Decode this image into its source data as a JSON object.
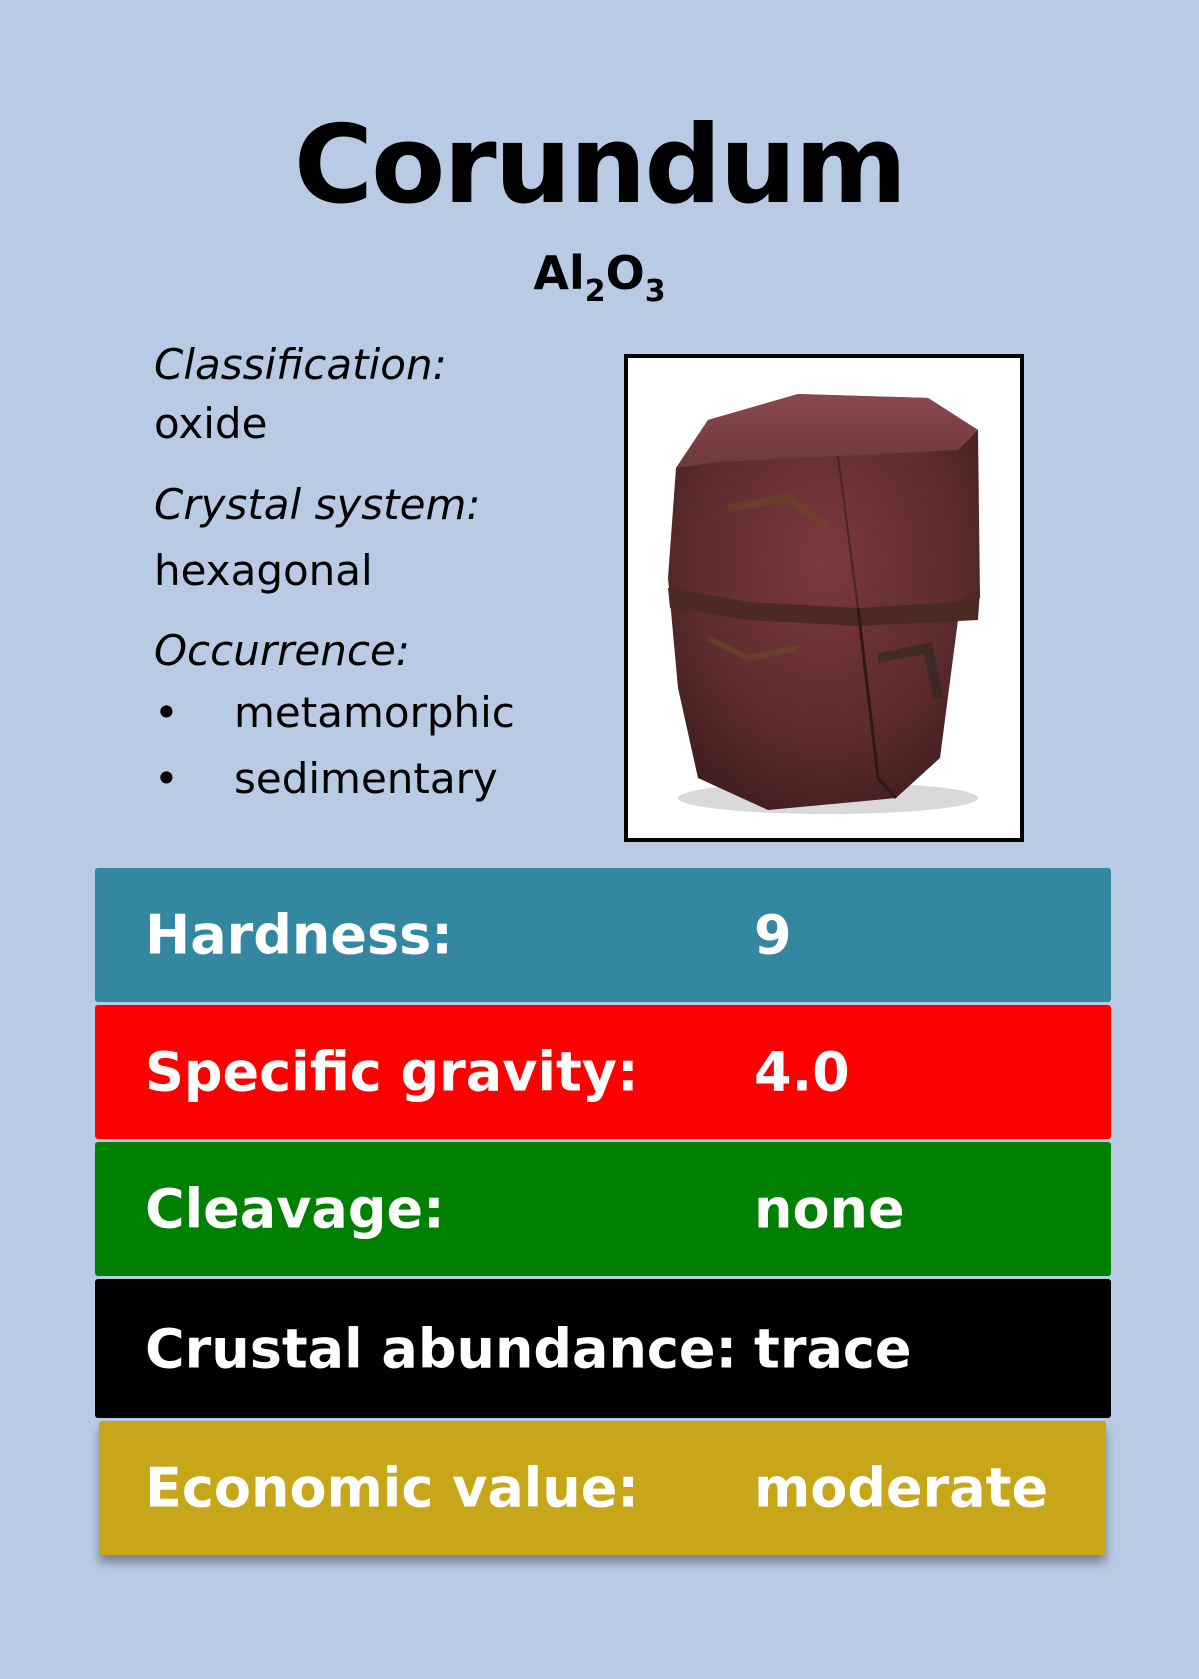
{
  "mineral": {
    "name": "Corundum",
    "formula": {
      "a": "Al",
      "a_sub": "2",
      "b": "O",
      "b_sub": "3"
    }
  },
  "details": {
    "classification_label": "Classification:",
    "classification_value": "oxide",
    "crystal_label": "Crystal system:",
    "crystal_value": "hexagonal",
    "occurrence_label": "Occurrence:",
    "occurrence_items": [
      "metamorphic",
      "sedimentary"
    ],
    "bullet": "•"
  },
  "properties": [
    {
      "label": "Hardness:",
      "value": "9",
      "color": "#3487a1"
    },
    {
      "label": "Specific gravity:",
      "value": "4.0",
      "color": "#ff0000"
    },
    {
      "label": "Cleavage:",
      "value": "none",
      "color": "#008000"
    },
    {
      "label": "Crustal abundance:",
      "value": "trace",
      "color": "#000000"
    },
    {
      "label": "Economic value:",
      "value": "moderate",
      "color": "#c8a619"
    }
  ]
}
